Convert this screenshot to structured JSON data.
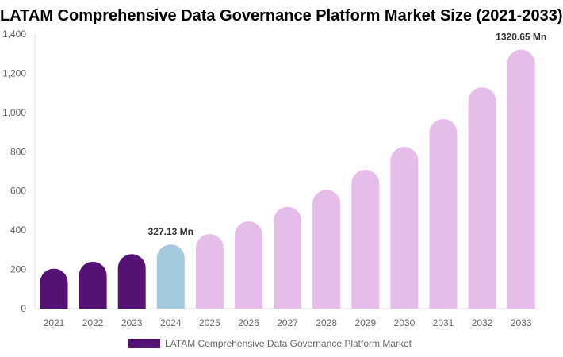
{
  "chart_data": {
    "type": "bar",
    "title": "LATAM Comprehensive Data Governance Platform Market Size (2021-2033)",
    "categories": [
      "2021",
      "2022",
      "2023",
      "2024",
      "2025",
      "2026",
      "2027",
      "2028",
      "2029",
      "2030",
      "2031",
      "2032",
      "2033"
    ],
    "series": [
      {
        "name": "LATAM Comprehensive Data Governance Platform Market",
        "values": [
          204,
          239,
          278,
          327.13,
          380,
          445,
          519,
          606,
          708,
          825,
          967,
          1128,
          1320.65
        ]
      }
    ],
    "data_labels": [
      {
        "category": "2024",
        "text": "327.13 Mn"
      },
      {
        "category": "2033",
        "text": "1320.65 Mn"
      }
    ],
    "ylim": [
      0,
      1400
    ],
    "yticks": [
      "0",
      "200",
      "400",
      "600",
      "800",
      "1,000",
      "1,200",
      "1,400"
    ],
    "ytick_values": [
      0,
      200,
      400,
      600,
      800,
      1000,
      1200,
      1400
    ],
    "grid": false,
    "legend_position": "bottom",
    "colors": {
      "historical": "#541374",
      "base_year": "#a3cade",
      "forecast": "#e6bce9"
    },
    "bar_color_groups": [
      "historical",
      "historical",
      "historical",
      "base_year",
      "forecast",
      "forecast",
      "forecast",
      "forecast",
      "forecast",
      "forecast",
      "forecast",
      "forecast",
      "forecast"
    ]
  }
}
